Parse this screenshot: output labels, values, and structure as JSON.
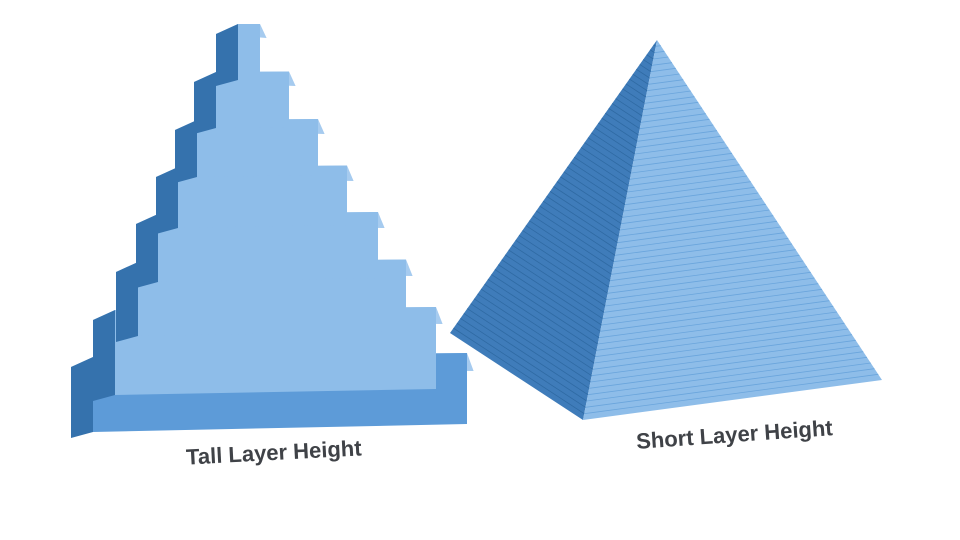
{
  "labels": {
    "tall": "Tall Layer Height",
    "short": "Short Layer Height"
  },
  "colors": {
    "background": "#ffffff",
    "face_light": "#8ebde9",
    "face_mid": "#5d9bd8",
    "face_dark": "#3f7cba",
    "side_dark": "#3572ad",
    "top_light": "#a6cbef",
    "label_text": "#3f4247"
  },
  "pyramids": {
    "tall": {
      "layer_count": 7
    },
    "short": {
      "layer_count": 60
    }
  }
}
